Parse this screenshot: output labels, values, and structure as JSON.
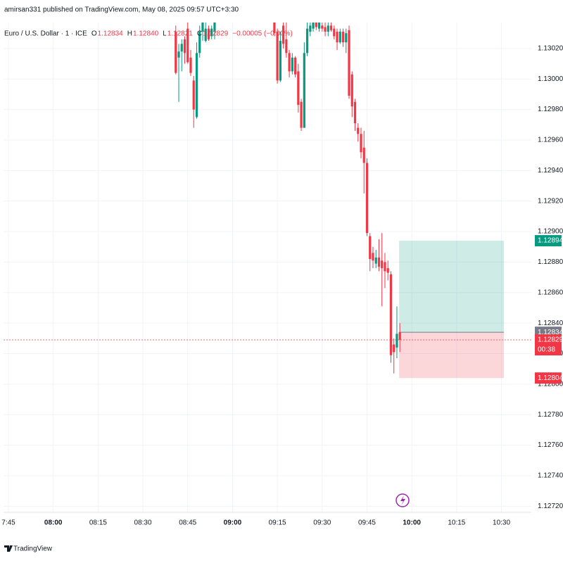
{
  "header": "amirsan331 published on TradingView.com, May 08, 2025 09:57 UTC+3:30",
  "footer": "TradingView",
  "chart_data": {
    "type": "candlestick",
    "legend": {
      "symbol": "Euro / U.S. Dollar · 1 · ICE",
      "items": [
        {
          "key": "O",
          "value": "1.12834"
        },
        {
          "key": "H",
          "value": "1.12840"
        },
        {
          "key": "L",
          "value": "1.12821"
        },
        {
          "key": "C",
          "value": "1.12829"
        }
      ],
      "change": "−0.00005 (−0.00%)"
    },
    "up_color": "#089981",
    "down_color": "#f23645",
    "x": [
      "08:41",
      "08:42",
      "08:43",
      "08:44",
      "08:45",
      "08:46",
      "08:47",
      "08:48",
      "08:49",
      "08:50",
      "08:51",
      "08:52",
      "08:53",
      "08:54",
      "09:14",
      "09:15",
      "09:16",
      "09:17",
      "09:18",
      "09:19",
      "09:20",
      "09:21",
      "09:22",
      "09:23",
      "09:24",
      "09:25",
      "09:26",
      "09:27",
      "09:28",
      "09:29",
      "09:30",
      "09:31",
      "09:32",
      "09:33",
      "09:34",
      "09:35",
      "09:36",
      "09:37",
      "09:38",
      "09:39",
      "09:40",
      "09:41",
      "09:42",
      "09:43",
      "09:44",
      "09:45",
      "09:46",
      "09:47",
      "09:48",
      "09:49",
      "09:50",
      "09:51",
      "09:52",
      "09:53",
      "09:54",
      "09:55",
      "09:56"
    ],
    "open": [
      1.13031,
      1.13014,
      1.13018,
      1.13026,
      1.13033,
      1.13014,
      1.12999,
      1.12975,
      1.13017,
      1.13031,
      1.13025,
      1.13033,
      1.13028,
      1.13031,
      1.13037,
      1.13031,
      1.12999,
      1.13035,
      1.13026,
      1.13017,
      1.13005,
      1.13014,
      1.13005,
      1.12985,
      1.12968,
      1.13017,
      1.13031,
      1.13033,
      1.13037,
      1.13033,
      1.13035,
      1.13034,
      1.13031,
      1.13035,
      1.13033,
      1.13031,
      1.13024,
      1.13031,
      1.13024,
      1.13032,
      1.13003,
      1.12985,
      1.12968,
      1.12964,
      1.12955,
      1.12945,
      1.12897,
      1.12886,
      1.12879,
      1.12883,
      1.12881,
      1.1288,
      1.12876,
      1.12872,
      1.12826,
      1.12824,
      1.12834
    ],
    "high": [
      1.13035,
      1.13023,
      1.13026,
      1.13028,
      1.13037,
      1.13019,
      1.13002,
      1.13024,
      1.13035,
      1.13042,
      1.13037,
      1.13035,
      1.13035,
      1.13042,
      1.1304,
      1.13033,
      1.13031,
      1.13037,
      1.13037,
      1.13019,
      1.13017,
      1.13015,
      1.1301,
      1.12987,
      1.13024,
      1.13037,
      1.1304,
      1.1304,
      1.1304,
      1.1304,
      1.13037,
      1.13037,
      1.13037,
      1.13037,
      1.13035,
      1.13033,
      1.13033,
      1.13033,
      1.13033,
      1.13035,
      1.13005,
      1.12987,
      1.12971,
      1.12968,
      1.12966,
      1.12948,
      1.12899,
      1.1289,
      1.12888,
      1.12895,
      1.12899,
      1.12886,
      1.12881,
      1.12874,
      1.1283,
      1.12851,
      1.1284
    ],
    "low": [
      1.13003,
      1.12985,
      1.13005,
      1.1301,
      1.1301,
      1.13002,
      1.12968,
      1.12974,
      1.13014,
      1.13025,
      1.13024,
      1.13025,
      1.13026,
      1.13026,
      1.13028,
      1.12997,
      1.12998,
      1.1302,
      1.13014,
      1.13001,
      1.13003,
      1.13001,
      1.12978,
      1.12966,
      1.12968,
      1.13015,
      1.13028,
      1.13031,
      1.13032,
      1.13031,
      1.13031,
      1.13028,
      1.13028,
      1.13031,
      1.13026,
      1.13019,
      1.13023,
      1.13021,
      1.13017,
      1.12987,
      1.12975,
      1.12966,
      1.12959,
      1.12948,
      1.12925,
      1.12897,
      1.12874,
      1.12876,
      1.12876,
      1.12874,
      1.12851,
      1.12863,
      1.12868,
      1.12814,
      1.12807,
      1.12817,
      1.12821
    ],
    "close": [
      1.13004,
      1.13018,
      1.13023,
      1.13017,
      1.13011,
      1.13004,
      1.1298,
      1.13017,
      1.13031,
      1.13037,
      1.13033,
      1.13026,
      1.13033,
      1.13037,
      1.1303,
      1.12999,
      1.13025,
      1.13023,
      1.13017,
      1.13005,
      1.13014,
      1.13003,
      1.12983,
      1.12968,
      1.13017,
      1.13033,
      1.13035,
      1.13037,
      1.13034,
      1.13037,
      1.13033,
      1.13031,
      1.13035,
      1.13032,
      1.13028,
      1.13024,
      1.13031,
      1.13024,
      1.1303,
      1.12989,
      1.12982,
      1.12971,
      1.12964,
      1.12952,
      1.12945,
      1.12899,
      1.12882,
      1.12881,
      1.12883,
      1.12877,
      1.12876,
      1.12874,
      1.12873,
      1.12819,
      1.12821,
      1.12833,
      1.12829
    ],
    "xlim": [
      "07:43:21",
      "10:40:00"
    ],
    "xticks": [
      "7:45",
      "08:00",
      "08:15",
      "08:30",
      "08:45",
      "09:00",
      "09:15",
      "09:30",
      "09:45",
      "10:00",
      "10:15",
      "10:30"
    ],
    "ylim": [
      1.12716,
      1.13037
    ],
    "yticks": [
      {
        "value": 1.1302,
        "label": "1.13020"
      },
      {
        "value": 1.13,
        "label": "1.13000"
      },
      {
        "value": 1.1298,
        "label": "1.12980"
      },
      {
        "value": 1.1296,
        "label": "1.12960"
      },
      {
        "value": 1.1294,
        "label": "1.12940"
      },
      {
        "value": 1.1292,
        "label": "1.12920"
      },
      {
        "value": 1.129,
        "label": "1.12900"
      },
      {
        "value": 1.1288,
        "label": "1.12880"
      },
      {
        "value": 1.1286,
        "label": "1.12860"
      },
      {
        "value": 1.1284,
        "label": "1.12840"
      },
      {
        "value": 1.1282,
        "label": "1.12820"
      },
      {
        "value": 1.128,
        "label": "1.12800"
      },
      {
        "value": 1.1278,
        "label": "1.12780"
      },
      {
        "value": 1.1276,
        "label": "1.12760"
      },
      {
        "value": 1.1274,
        "label": "1.12740"
      },
      {
        "value": 1.1272,
        "label": "1.12720"
      }
    ],
    "grid": true,
    "last_price": 1.12829,
    "countdown": "00:38",
    "position": {
      "start": "09:55:45",
      "end": "10:30:50",
      "entry": 1.12834,
      "target": 1.12894,
      "stop": 1.12804
    }
  }
}
